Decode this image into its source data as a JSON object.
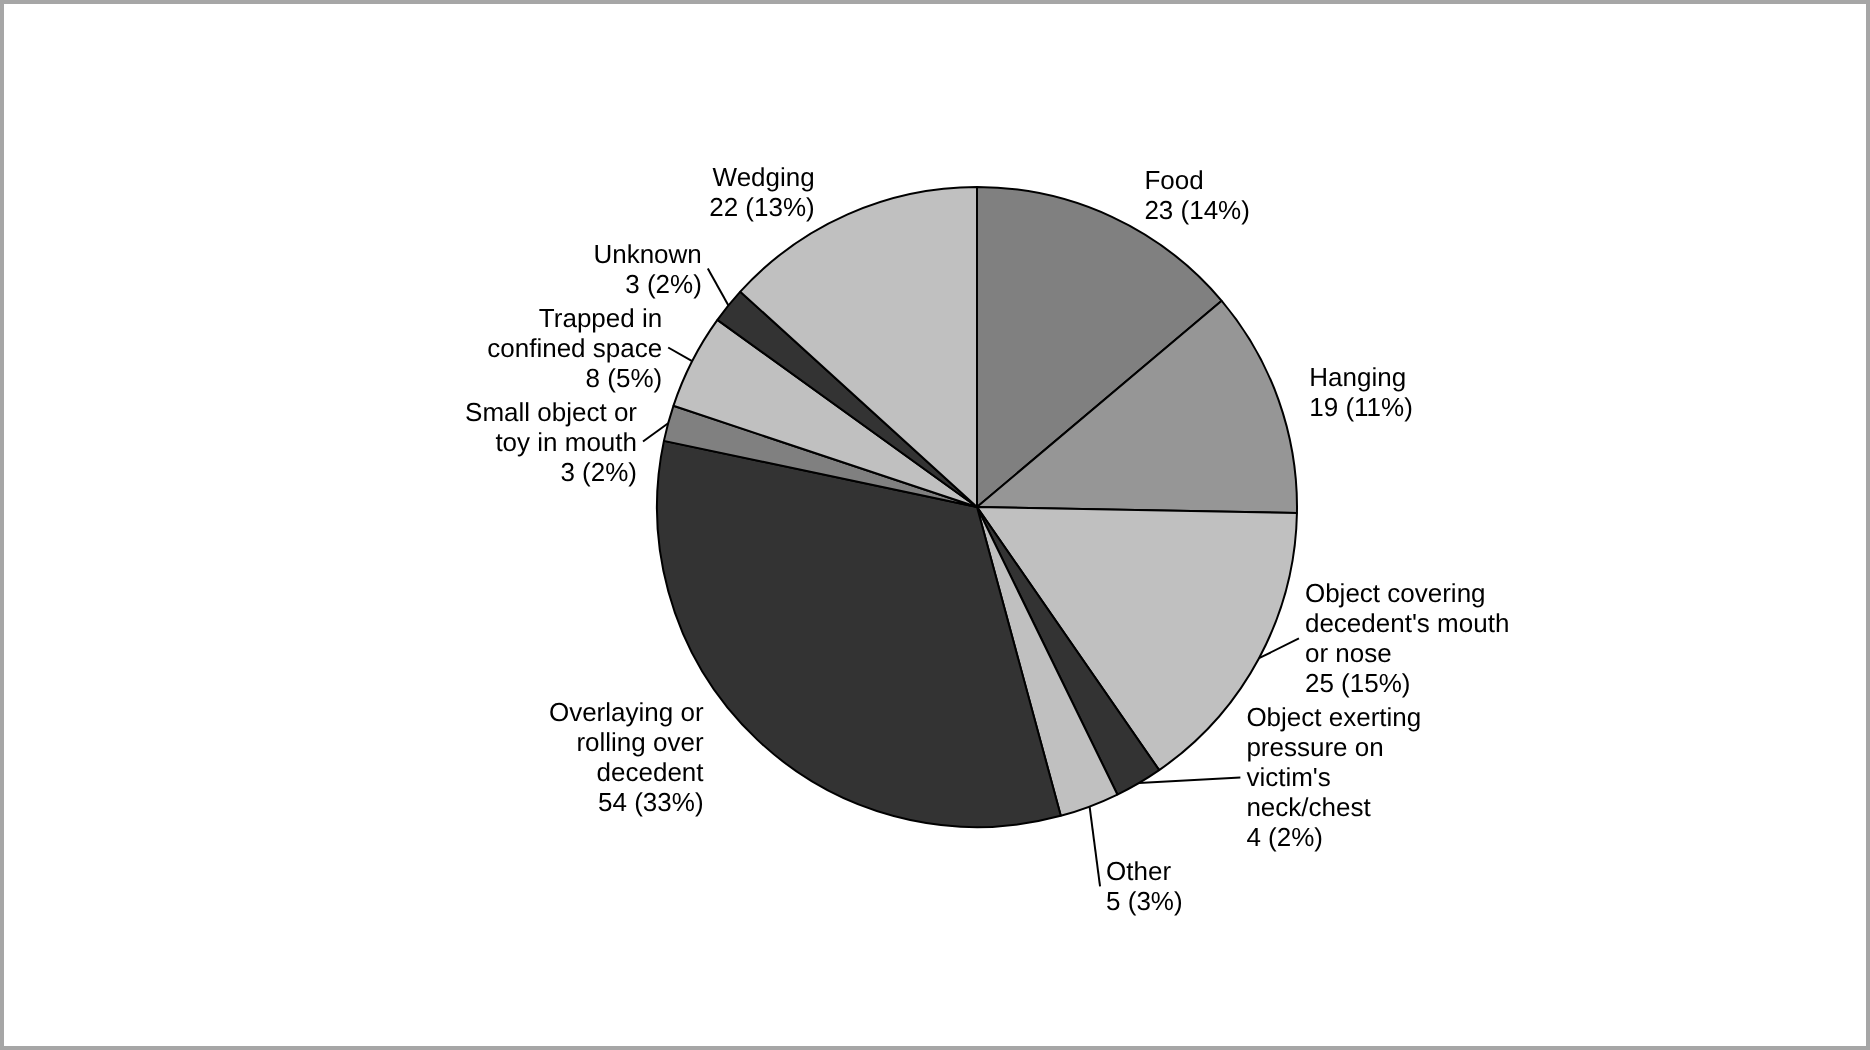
{
  "chart_data": {
    "type": "pie",
    "categories": [
      "Food",
      "Hanging",
      "Object covering decedent's mouth or nose",
      "Object exerting pressure on victim's neck/chest",
      "Other",
      "Overlaying or rolling over decedent",
      "Small object or toy in mouth",
      "Trapped in confined space",
      "Unknown",
      "Wedging"
    ],
    "values": [
      23,
      19,
      25,
      4,
      5,
      54,
      3,
      8,
      3,
      22
    ],
    "colors": [
      "#808080",
      "#969696",
      "#c0c0c0",
      "#333333",
      "#c0c0c0",
      "#333333",
      "#808080",
      "#c0c0c0",
      "#333333",
      "#c0c0c0"
    ],
    "value_labels": [
      "23 (14%)",
      "19 (11%)",
      "25 (15%)",
      "4 (2%)",
      "5 (3%)",
      "54 (33%)",
      "3 (2%)",
      "8 (5%)",
      "3 (2%)",
      "22 (13%)"
    ]
  }
}
